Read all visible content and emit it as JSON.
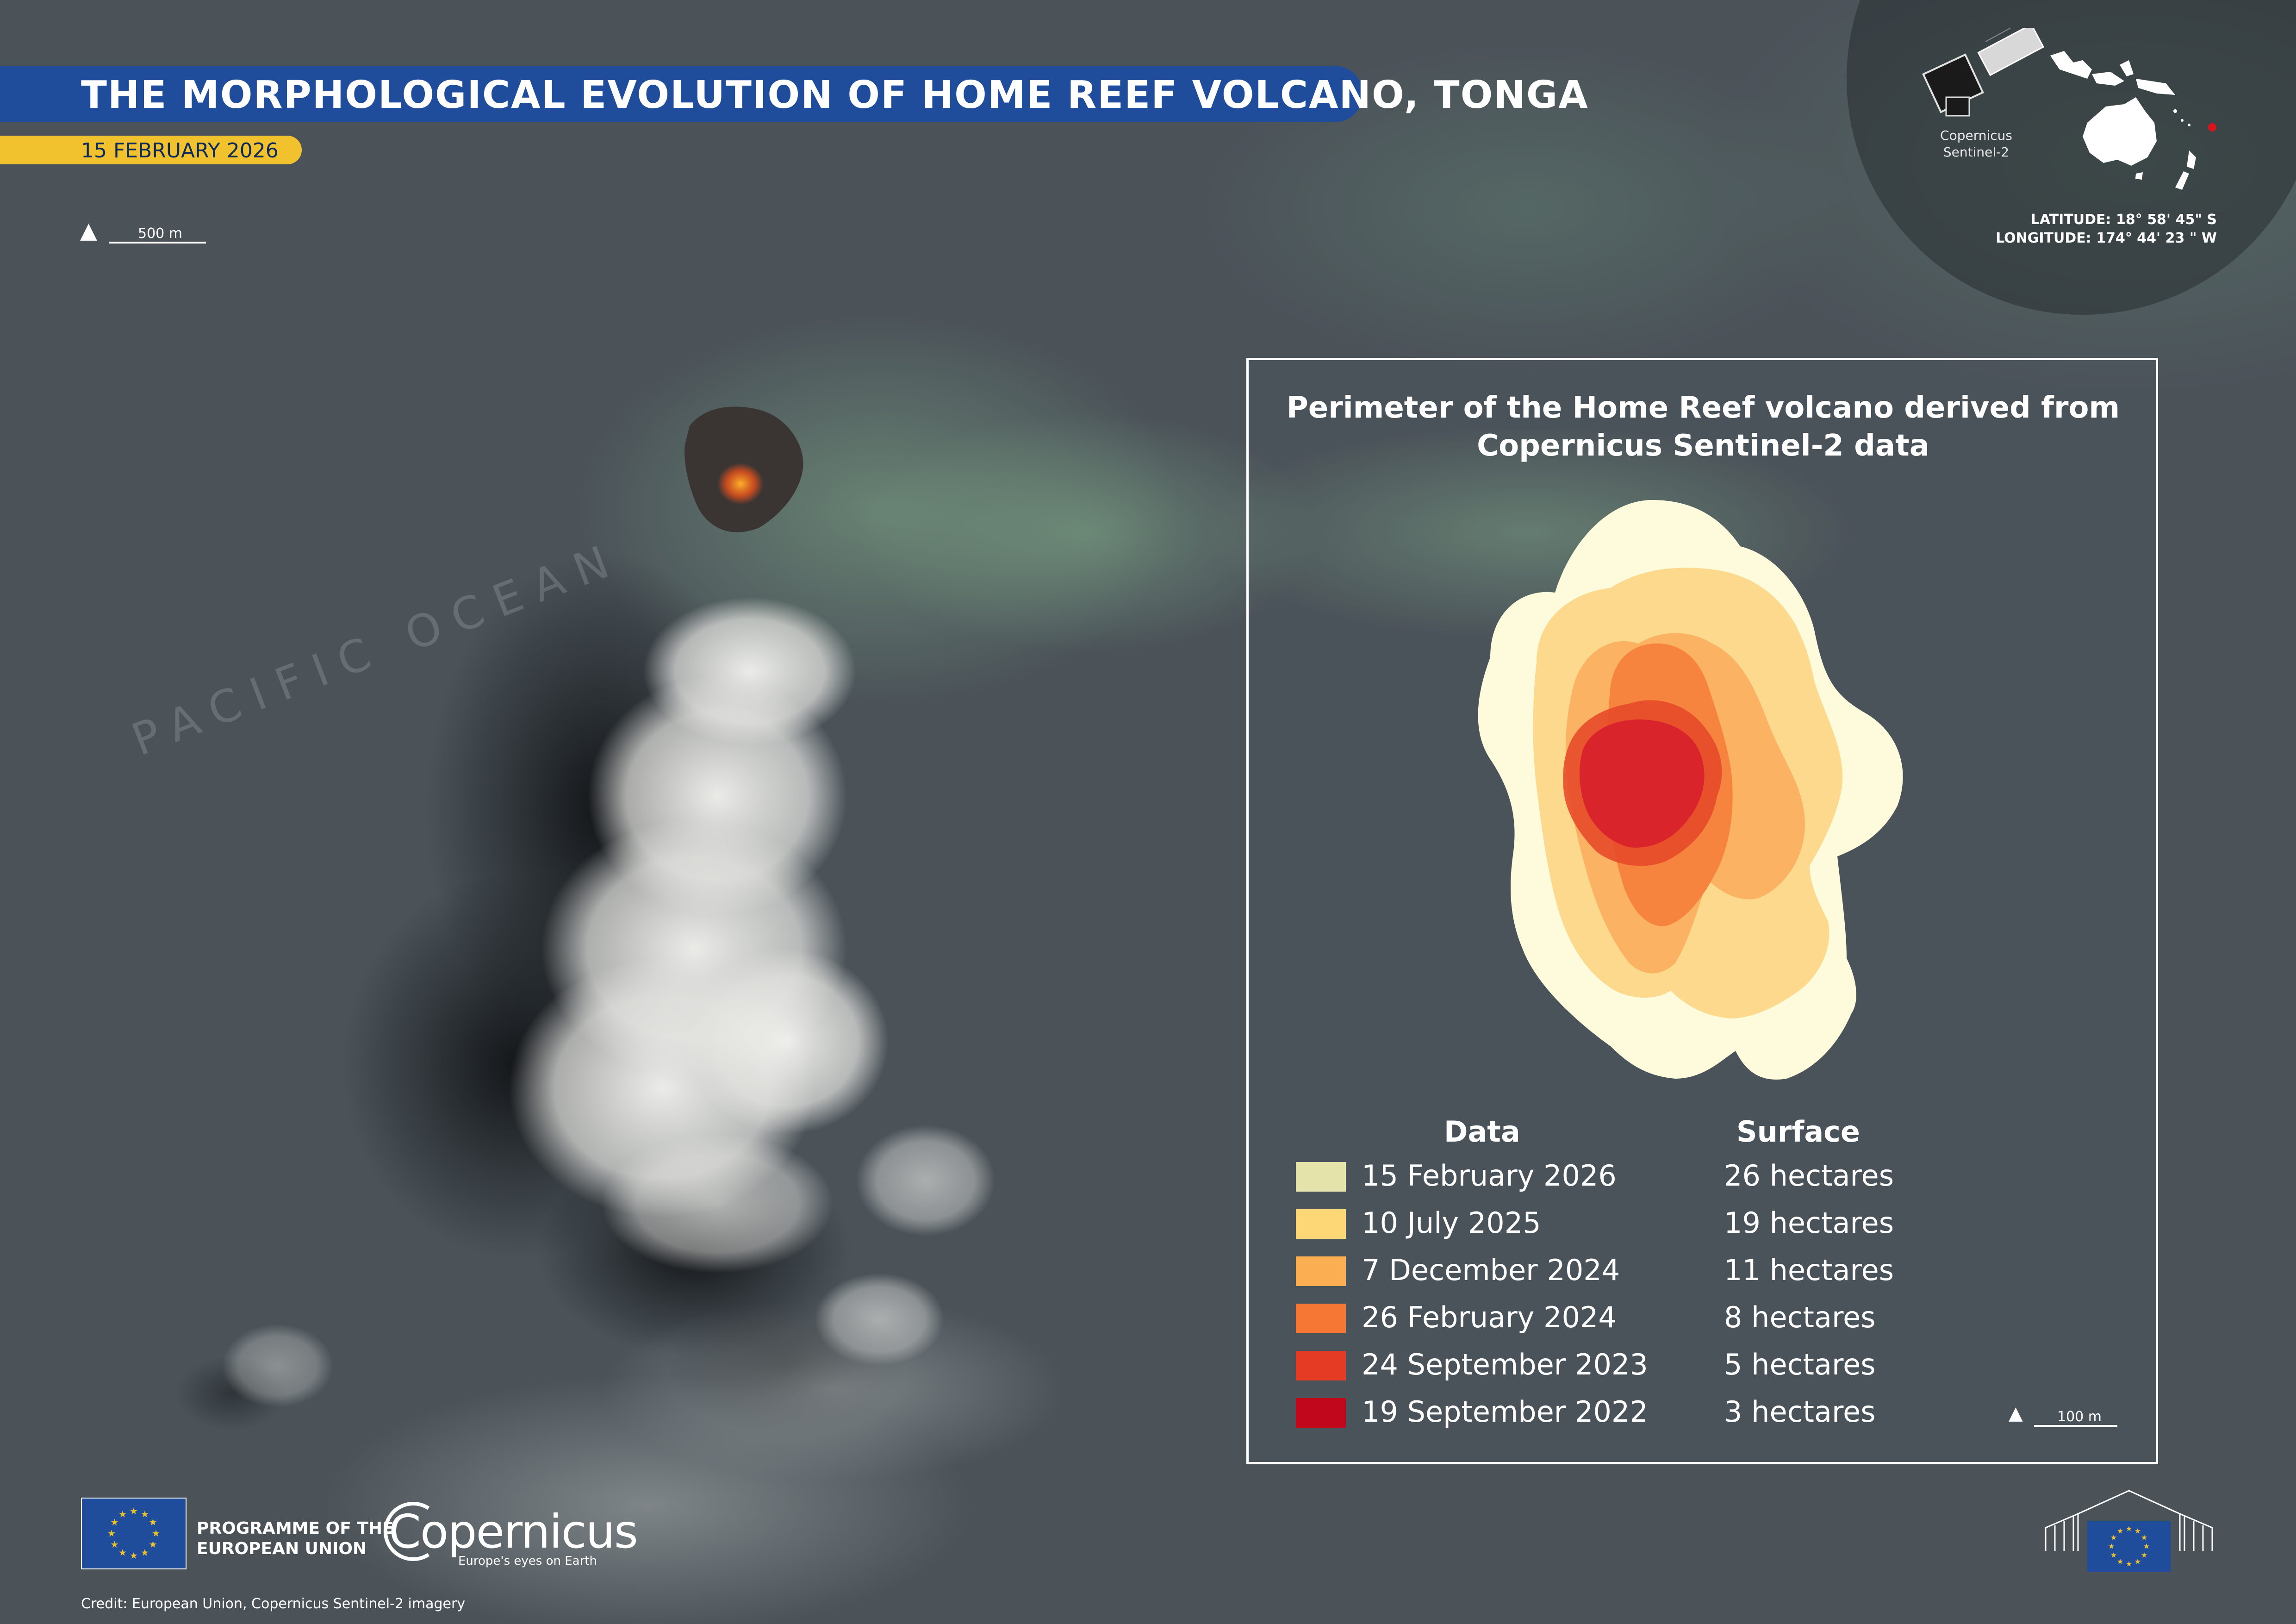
{
  "header": {
    "title": "THE MORPHOLOGICAL EVOLUTION OF HOME REEF VOLCANO, TONGA",
    "date": "15 FEBRUARY 2026"
  },
  "map": {
    "scale_main": "500 m",
    "ocean_label": "PACIFIC OCEAN",
    "colors": {
      "ocean": "#4a5258",
      "plume_dark": "#15181c",
      "steam": "#f2f2ee",
      "discolored_water": "#7fa888"
    }
  },
  "inset": {
    "satellite_caption": [
      "Copernicus",
      "Sentinel-2"
    ],
    "latitude": "LATITUDE: 18° 58' 45\" S",
    "longitude": "LONGITUDE: 174° 44' 23 \" W",
    "location_marker_color": "#d8141c"
  },
  "legend": {
    "title_line1": "Perimeter of the Home Reef volcano derived from",
    "title_line2": "Copernicus Sentinel-2 data",
    "col_date": "Data",
    "col_surface": "Surface",
    "scale": "100 m",
    "rows": [
      {
        "date": "15 February 2026",
        "surface": "26 hectares",
        "hectares": 26,
        "color": "#e4e3aa"
      },
      {
        "date": "10 July 2025",
        "surface": "19 hectares",
        "hectares": 19,
        "color": "#fdd675"
      },
      {
        "date": "7 December 2024",
        "surface": "11 hectares",
        "hectares": 11,
        "color": "#fbae52"
      },
      {
        "date": "26 February 2024",
        "surface": "8 hectares",
        "hectares": 8,
        "color": "#f67734"
      },
      {
        "date": "24 September 2023",
        "surface": "5 hectares",
        "hectares": 5,
        "color": "#e53a24"
      },
      {
        "date": "19 September 2022",
        "surface": "3 hectares",
        "hectares": 3,
        "color": "#c0071c"
      }
    ]
  },
  "footer": {
    "programme_line1": "PROGRAMME OF THE",
    "programme_line2": "EUROPEAN UNION",
    "copernicus": "Copernicus",
    "copernicus_tagline": "Europe's eyes on Earth",
    "credit": "Credit: European Union, Copernicus Sentinel-2 imagery"
  },
  "icons": [
    "north-arrow-icon",
    "sentinel-2-satellite-icon",
    "eu-flag-icon",
    "european-commission-logo-icon"
  ]
}
